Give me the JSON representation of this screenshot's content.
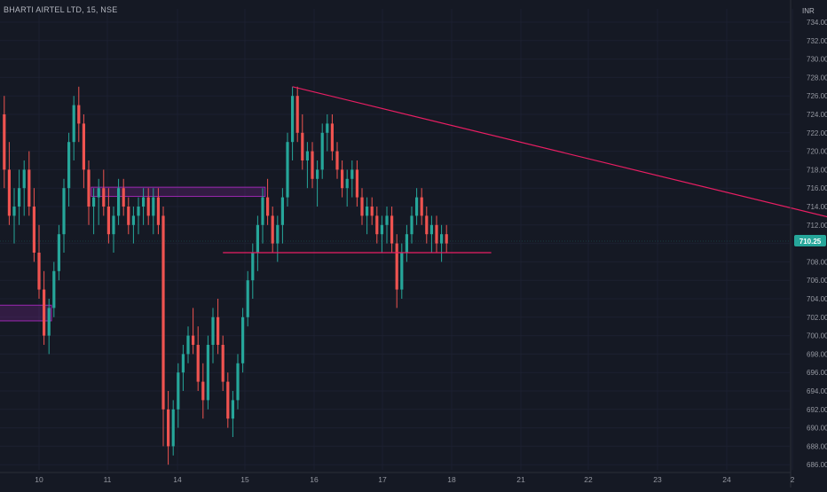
{
  "header": {
    "symbol": "BHARTI AIRTEL LTD, 15, NSE"
  },
  "price_axis": {
    "currency": "INR",
    "ticks": [
      "734.00",
      "732.00",
      "730.00",
      "728.00",
      "726.00",
      "724.00",
      "722.00",
      "720.00",
      "718.00",
      "716.00",
      "714.00",
      "712.00",
      "708.00",
      "706.00",
      "704.00",
      "702.00",
      "700.00",
      "698.00",
      "696.00",
      "694.00",
      "692.00",
      "690.00",
      "688.00",
      "686.00"
    ],
    "current_price": "710.25"
  },
  "time_axis": {
    "labels": [
      "10",
      "11",
      "14",
      "15",
      "16",
      "17",
      "18",
      "21",
      "22",
      "23",
      "24",
      "2"
    ]
  },
  "colors": {
    "background": "#151924",
    "bull": "#26a69a",
    "bear": "#ef5350",
    "pattern_line": "#e91e63",
    "zone": "#9c27b0",
    "arrow": "#4caf50"
  },
  "chart_data": {
    "type": "candlestick",
    "y_unit": "INR",
    "ylim": [
      685,
      735
    ],
    "x_labels": [
      "10",
      "11",
      "14",
      "15",
      "16",
      "17",
      "18",
      "21",
      "22",
      "23",
      "24",
      "2"
    ],
    "last_price": 710.25,
    "series": [
      {
        "values": [
          [
            724,
            726,
            716,
            718
          ],
          [
            718,
            721,
            712,
            713
          ],
          [
            713,
            716,
            710,
            714
          ],
          [
            714,
            718,
            712,
            716
          ],
          [
            716,
            719,
            713,
            718
          ],
          [
            718,
            720,
            713,
            714
          ],
          [
            714,
            716,
            708,
            709
          ],
          [
            709,
            712,
            704,
            705
          ],
          [
            705,
            707,
            699,
            700
          ],
          [
            700,
            704,
            698,
            703
          ],
          [
            703,
            708,
            702,
            707
          ],
          [
            707,
            712,
            706,
            711
          ],
          [
            711,
            717,
            709,
            716
          ],
          [
            716,
            722,
            714,
            721
          ],
          [
            721,
            726,
            719,
            725
          ],
          [
            725,
            727,
            721,
            723
          ],
          [
            723,
            724,
            716,
            718
          ],
          [
            718,
            719,
            712,
            714
          ],
          [
            714,
            716,
            711,
            715
          ],
          [
            715,
            717,
            712,
            716
          ],
          [
            716,
            718,
            713,
            714
          ],
          [
            714,
            716,
            710,
            711
          ],
          [
            711,
            714,
            709,
            713
          ],
          [
            713,
            717,
            712,
            716
          ],
          [
            716,
            717,
            713,
            714
          ],
          [
            714,
            715,
            711,
            712
          ],
          [
            712,
            714,
            710,
            713
          ],
          [
            713,
            715,
            711,
            714
          ],
          [
            714,
            716,
            712,
            715
          ],
          [
            715,
            716,
            712,
            713
          ],
          [
            713,
            716,
            711,
            715
          ],
          [
            715,
            716,
            711,
            712
          ],
          [
            713,
            714,
            688,
            692
          ],
          [
            692,
            694,
            686,
            688
          ],
          [
            688,
            693,
            687,
            692
          ],
          [
            692,
            697,
            690,
            696
          ],
          [
            696,
            699,
            694,
            698
          ],
          [
            698,
            701,
            697,
            700
          ],
          [
            700,
            703,
            698,
            699
          ],
          [
            699,
            701,
            694,
            695
          ],
          [
            695,
            697,
            691,
            693
          ],
          [
            693,
            700,
            692,
            699
          ],
          [
            699,
            703,
            697,
            702
          ],
          [
            702,
            704,
            698,
            699
          ],
          [
            699,
            700,
            694,
            695
          ],
          [
            695,
            696,
            690,
            691
          ],
          [
            691,
            694,
            689,
            693
          ],
          [
            693,
            698,
            692,
            697
          ],
          [
            697,
            703,
            696,
            702
          ],
          [
            702,
            707,
            701,
            706
          ],
          [
            706,
            710,
            704,
            709
          ],
          [
            709,
            713,
            707,
            712
          ],
          [
            712,
            716,
            710,
            715
          ],
          [
            715,
            717,
            712,
            713
          ],
          [
            713,
            714,
            709,
            710
          ],
          [
            710,
            713,
            708,
            712
          ],
          [
            712,
            716,
            710,
            715
          ],
          [
            715,
            722,
            714,
            721
          ],
          [
            721,
            727,
            719,
            726
          ],
          [
            726,
            727,
            721,
            722
          ],
          [
            722,
            724,
            718,
            719
          ],
          [
            719,
            721,
            716,
            720
          ],
          [
            720,
            721,
            716,
            717
          ],
          [
            717,
            719,
            714,
            718
          ],
          [
            718,
            723,
            717,
            722
          ],
          [
            722,
            724,
            720,
            723
          ],
          [
            723,
            724,
            719,
            720
          ],
          [
            720,
            721,
            717,
            718
          ],
          [
            718,
            719,
            715,
            716
          ],
          [
            716,
            718,
            714,
            717
          ],
          [
            717,
            719,
            715,
            718
          ],
          [
            718,
            719,
            714,
            715
          ],
          [
            715,
            716,
            712,
            713
          ],
          [
            713,
            715,
            711,
            714
          ],
          [
            714,
            715,
            712,
            713
          ],
          [
            713,
            714,
            710,
            711
          ],
          [
            711,
            713,
            709,
            712
          ],
          [
            712,
            714,
            710,
            713
          ],
          [
            713,
            714,
            709,
            710
          ],
          [
            710,
            711,
            703,
            705
          ],
          [
            705,
            710,
            704,
            709
          ],
          [
            709,
            712,
            708,
            711
          ],
          [
            711,
            714,
            710,
            713
          ],
          [
            713,
            716,
            712,
            715
          ],
          [
            715,
            716,
            712,
            713
          ],
          [
            713,
            714,
            710,
            711
          ],
          [
            711,
            713,
            709,
            712
          ],
          [
            712,
            713,
            709,
            710
          ],
          [
            710,
            712,
            708,
            711
          ],
          [
            711,
            712,
            709,
            710
          ]
        ]
      }
    ],
    "drawings": [
      {
        "kind": "trendline",
        "points": [
          [
            58,
            727
          ],
          [
            180,
            711
          ]
        ]
      },
      {
        "kind": "horizontal",
        "y": 709,
        "x_range": [
          44,
          98
        ]
      },
      {
        "kind": "zone",
        "y_range": [
          715.1,
          716.1
        ],
        "x_range": [
          18,
          52
        ]
      },
      {
        "kind": "zone",
        "y_range": [
          701.6,
          703.3
        ],
        "x_range": [
          -1,
          9
        ]
      }
    ]
  }
}
